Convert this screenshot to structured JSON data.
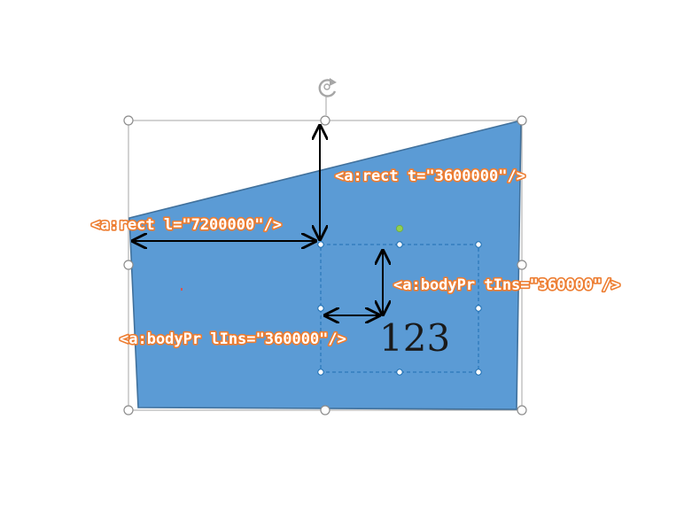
{
  "annotations": {
    "rect_t": "<a:rect t=\"3600000\"/>",
    "rect_l": "<a:rect l=\"7200000\"/>",
    "body_tins": "<a:bodyPr tIns=\"360000\"/>",
    "body_lins": "<a:bodyPr lIns=\"360000\"/>"
  },
  "shape": {
    "text": "123",
    "fill_color": "#5b9bd5",
    "outline_color": "#41719c"
  },
  "icons": {
    "rotate": "rotate-icon"
  }
}
